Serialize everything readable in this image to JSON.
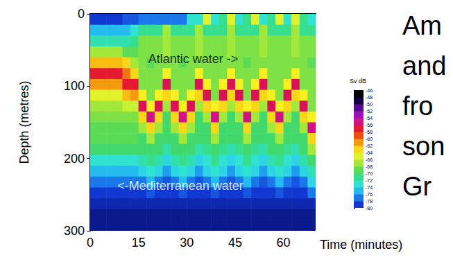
{
  "chart_data": {
    "type": "heatmap",
    "x_label": "Time (minutes)",
    "y_label": "Depth (metres)",
    "xlim": [
      0,
      70
    ],
    "xticks": [
      0,
      15,
      30,
      45,
      60
    ],
    "ylim": [
      0,
      300
    ],
    "yticks": [
      0,
      100,
      200,
      300
    ],
    "grid": false,
    "time_edges": [
      0,
      2.5,
      5,
      7.5,
      10,
      12.5,
      15,
      17.5,
      20,
      22.5,
      25,
      27.5,
      30,
      32.5,
      35,
      37.5,
      40,
      42.5,
      45,
      47.5,
      50,
      52.5,
      55,
      57.5,
      60,
      62.5,
      65,
      67.5,
      70
    ],
    "depth_edges": [
      0,
      15,
      30,
      45,
      60,
      75,
      90,
      105,
      120,
      135,
      150,
      165,
      180,
      195,
      210,
      225,
      240,
      255,
      270,
      285,
      300
    ],
    "sv_db": [
      [
        -78,
        -78,
        -78,
        -78,
        -77,
        -77,
        -76,
        -76,
        -76,
        -76,
        -76,
        -76,
        -72,
        -72,
        -64,
        -72,
        -70,
        -64,
        -72,
        -70,
        -64,
        -72,
        -70,
        -64,
        -72,
        -64,
        -70,
        -72
      ],
      [
        -74,
        -74,
        -74,
        -74,
        -74,
        -72,
        -70,
        -70,
        -70,
        -66,
        -70,
        -70,
        -70,
        -66,
        -70,
        -70,
        -70,
        -66,
        -70,
        -70,
        -70,
        -66,
        -70,
        -70,
        -70,
        -66,
        -70,
        -70
      ],
      [
        -71,
        -71,
        -71,
        -71,
        -71,
        -70,
        -67,
        -67,
        -67,
        -66,
        -67,
        -67,
        -67,
        -66,
        -67,
        -67,
        -67,
        -66,
        -67,
        -67,
        -67,
        -66,
        -67,
        -67,
        -67,
        -66,
        -67,
        -67
      ],
      [
        -66,
        -66,
        -66,
        -66,
        -68,
        -68,
        -67,
        -67,
        -67,
        -66,
        -67,
        -67,
        -67,
        -66,
        -67,
        -67,
        -67,
        -66,
        -67,
        -67,
        -67,
        -66,
        -67,
        -67,
        -67,
        -66,
        -67,
        -67
      ],
      [
        -61,
        -61,
        -61,
        -61,
        -62,
        -66,
        -67,
        -68,
        -67,
        -67,
        -67,
        -68,
        -67,
        -67,
        -67,
        -67,
        -67,
        -67,
        -67,
        -68,
        -67,
        -67,
        -67,
        -67,
        -67,
        -67,
        -67,
        -68
      ],
      [
        -56,
        -56,
        -56,
        -56,
        -59,
        -62,
        -67,
        -67,
        -67,
        -63,
        -67,
        -67,
        -67,
        -63,
        -67,
        -67,
        -67,
        -63,
        -67,
        -67,
        -67,
        -63,
        -67,
        -67,
        -67,
        -63,
        -67,
        -67
      ],
      [
        -60,
        -60,
        -60,
        -60,
        -56,
        -56,
        -67,
        -67,
        -67,
        -55,
        -67,
        -67,
        -67,
        -55,
        -63,
        -67,
        -63,
        -55,
        -63,
        -67,
        -63,
        -55,
        -67,
        -67,
        -63,
        -55,
        -67,
        -67
      ],
      [
        -64,
        -64,
        -64,
        -64,
        -61,
        -60,
        -63,
        -67,
        -63,
        -62,
        -63,
        -67,
        -63,
        -62,
        -55,
        -67,
        -55,
        -62,
        -55,
        -67,
        -55,
        -62,
        -63,
        -67,
        -55,
        -62,
        -63,
        -67
      ],
      [
        -66,
        -66,
        -66,
        -66,
        -65,
        -65,
        -55,
        -63,
        -55,
        -66,
        -55,
        -63,
        -55,
        -66,
        -62,
        -63,
        -62,
        -66,
        -62,
        -63,
        -62,
        -66,
        -55,
        -63,
        -62,
        -66,
        -55,
        -67
      ],
      [
        -67,
        -67,
        -67,
        -67,
        -67,
        -67,
        -62,
        -54,
        -62,
        -69,
        -62,
        -54,
        -62,
        -69,
        -66,
        -54,
        -66,
        -69,
        -66,
        -54,
        -66,
        -69,
        -62,
        -54,
        -66,
        -69,
        -62,
        -63
      ],
      [
        -68,
        -68,
        -68,
        -68,
        -68,
        -68,
        -66,
        -62,
        -66,
        -69,
        -66,
        -62,
        -66,
        -69,
        -69,
        -62,
        -69,
        -69,
        -69,
        -62,
        -69,
        -69,
        -66,
        -62,
        -69,
        -69,
        -66,
        -54
      ],
      [
        -68,
        -68,
        -68,
        -68,
        -68,
        -68,
        -69,
        -66,
        -69,
        -69,
        -69,
        -66,
        -69,
        -69,
        -69,
        -66,
        -69,
        -69,
        -69,
        -66,
        -69,
        -69,
        -69,
        -66,
        -69,
        -69,
        -69,
        -62
      ],
      [
        -69,
        -69,
        -69,
        -69,
        -69,
        -69,
        -69,
        -69,
        -69,
        -71,
        -69,
        -69,
        -69,
        -71,
        -70,
        -69,
        -70,
        -71,
        -70,
        -69,
        -70,
        -71,
        -69,
        -69,
        -70,
        -71,
        -69,
        -66
      ],
      [
        -72,
        -72,
        -72,
        -72,
        -72,
        -72,
        -71,
        -70,
        -71,
        -73,
        -71,
        -70,
        -71,
        -73,
        -72,
        -70,
        -72,
        -73,
        -72,
        -70,
        -72,
        -73,
        -71,
        -70,
        -72,
        -73,
        -71,
        -69
      ],
      [
        -74,
        -74,
        -74,
        -74,
        -74,
        -74,
        -73,
        -72,
        -73,
        -75,
        -73,
        -72,
        -73,
        -75,
        -73,
        -72,
        -73,
        -75,
        -73,
        -72,
        -73,
        -75,
        -73,
        -72,
        -73,
        -75,
        -73,
        -71
      ],
      [
        -76,
        -76,
        -76,
        -76,
        -76,
        -76,
        -76,
        -74,
        -76,
        -77,
        -76,
        -74,
        -76,
        -77,
        -76,
        -74,
        -76,
        -77,
        -76,
        -74,
        -76,
        -77,
        -76,
        -74,
        -76,
        -77,
        -76,
        -73
      ],
      [
        -78,
        -78,
        -78,
        -78,
        -78,
        -78,
        -78,
        -77,
        -78,
        -78,
        -78,
        -77,
        -78,
        -78,
        -78,
        -77,
        -78,
        -78,
        -78,
        -77,
        -78,
        -78,
        -78,
        -77,
        -78,
        -78,
        -78,
        -76
      ],
      [
        -79,
        -79,
        -79,
        -79,
        -79,
        -79,
        -79,
        -79,
        -79,
        -79,
        -79,
        -79,
        -79,
        -79,
        -79,
        -79,
        -79,
        -79,
        -79,
        -79,
        -79,
        -79,
        -79,
        -79,
        -79,
        -79,
        -79,
        -79
      ],
      [
        -80,
        -80,
        -80,
        -80,
        -80,
        -80,
        -80,
        -80,
        -80,
        -80,
        -80,
        -80,
        -80,
        -80,
        -80,
        -80,
        -80,
        -80,
        -80,
        -80,
        -80,
        -80,
        -80,
        -80,
        -80,
        -80,
        -80,
        -80
      ],
      [
        -80,
        -80,
        -80,
        -80,
        -80,
        -80,
        -80,
        -80,
        -80,
        -80,
        -80,
        -80,
        -80,
        -80,
        -80,
        -80,
        -80,
        -80,
        -80,
        -80,
        -80,
        -80,
        -80,
        -80,
        -80,
        -80,
        -80,
        -80
      ]
    ],
    "colorbar": {
      "title": "Sv dB",
      "range": [
        -80,
        -46
      ],
      "ticks": [
        -80,
        -78,
        -76,
        -74,
        -72,
        -70,
        -68,
        -66,
        -64,
        -62,
        -60,
        -58,
        -56,
        -54,
        -52,
        -50,
        -48,
        -46
      ]
    },
    "annotations": [
      {
        "text": "Atlantic water ->",
        "x": 32,
        "y": 62,
        "color": "#000000"
      },
      {
        "text": "<-Mediterranean water",
        "x": 28,
        "y": 238,
        "color": "#ffffff"
      }
    ],
    "side_text": [
      "Am",
      "and",
      "fro",
      "son",
      "Gr"
    ]
  }
}
